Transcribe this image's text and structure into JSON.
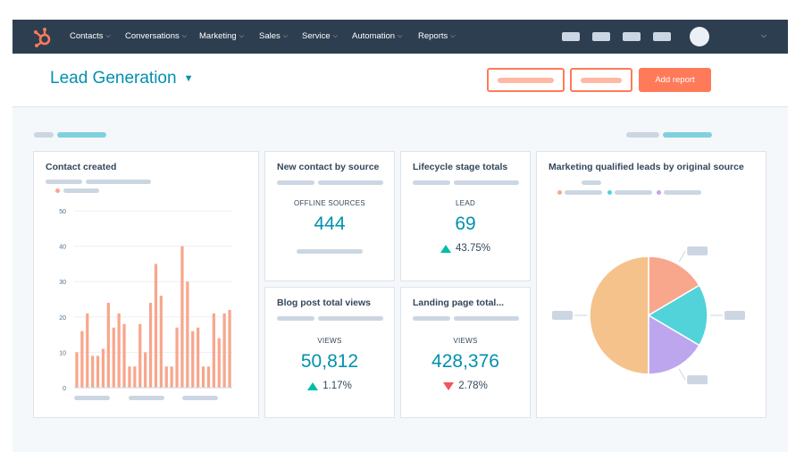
{
  "colors": {
    "nav_bg": "#2d3e50",
    "accent": "#ff7a59",
    "teal_value": "#0091ae",
    "bar": "#f8a68c",
    "pie_orange": "#f5c28c",
    "pie_salmon": "#f8a68c",
    "pie_cyan": "#51d3d9",
    "pie_purple": "#bda6ed",
    "up": "#00bda5",
    "down": "#f2545b"
  },
  "nav": {
    "logo_icon": "hubspot-sprocket-icon",
    "items": [
      {
        "label": "Contacts"
      },
      {
        "label": "Conversations"
      },
      {
        "label": "Marketing"
      },
      {
        "label": "Sales"
      },
      {
        "label": "Service"
      },
      {
        "label": "Automation"
      },
      {
        "label": "Reports"
      }
    ]
  },
  "header": {
    "title": "Lead Generation",
    "add_report_label": "Add report"
  },
  "cards": {
    "contact_created": {
      "title": "Contact created"
    },
    "new_contact_by_source": {
      "title": "New contact by source",
      "metric_label": "OFFLINE SOURCES",
      "metric_value": "444"
    },
    "lifecycle_stage_totals": {
      "title": "Lifecycle stage totals",
      "metric_label": "LEAD",
      "metric_value": "69",
      "change": "43.75%",
      "change_direction": "up"
    },
    "blog_post_total_views": {
      "title": "Blog post total views",
      "metric_label": "VIEWS",
      "metric_value": "50,812",
      "change": "1.17%",
      "change_direction": "up"
    },
    "landing_page_total": {
      "title": "Landing page total...",
      "metric_label": "VIEWS",
      "metric_value": "428,376",
      "change": "2.78%",
      "change_direction": "down"
    },
    "mql_by_source": {
      "title": "Marketing qualified leads by original source"
    }
  },
  "chart_data": [
    {
      "type": "bar",
      "title": "Contact created",
      "ylim": [
        0,
        50
      ],
      "yticks": [
        "0",
        "10",
        "20",
        "30",
        "40",
        "50"
      ],
      "grid": true,
      "values": [
        10,
        16,
        21,
        9,
        9,
        11,
        24,
        17,
        21,
        18,
        6,
        6,
        18,
        10,
        24,
        35,
        26,
        6,
        6,
        17,
        40,
        30,
        16,
        17,
        6,
        6,
        21,
        14,
        21,
        22
      ]
    },
    {
      "type": "pie",
      "title": "Marketing qualified leads by original source",
      "slices": [
        {
          "color": "#f8a68c",
          "value": 16.5
        },
        {
          "color": "#51d3d9",
          "value": 17
        },
        {
          "color": "#bda6ed",
          "value": 16.5
        },
        {
          "color": "#f5c28c",
          "value": 50
        }
      ]
    }
  ]
}
